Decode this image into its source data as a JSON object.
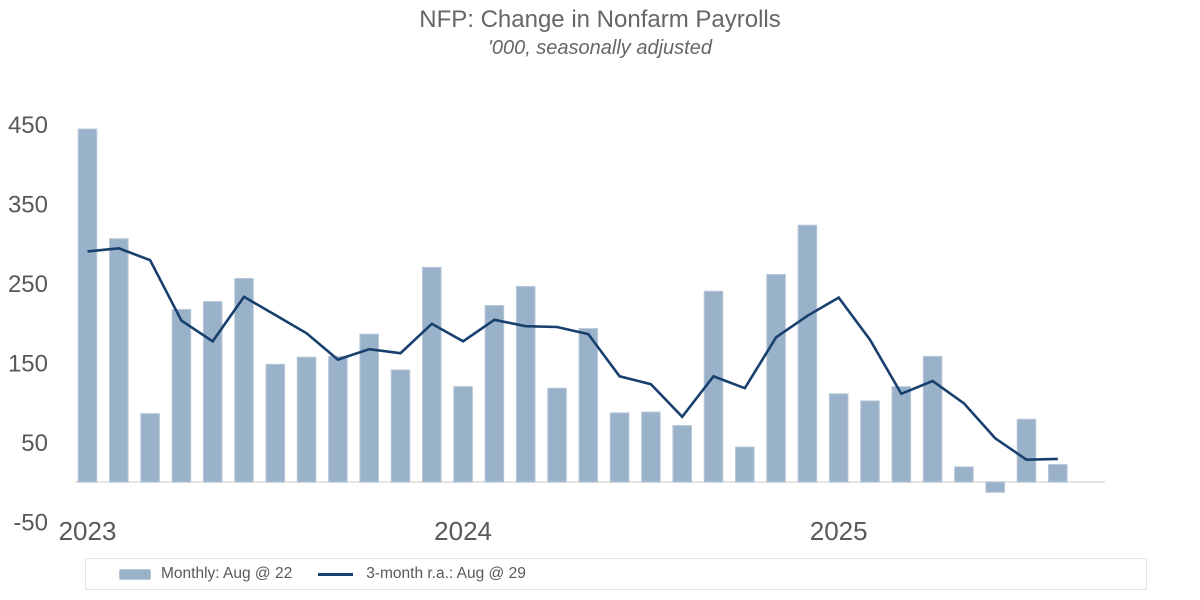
{
  "title": "NFP: Change in Nonfarm Payrolls",
  "subtitle": "'000, seasonally adjusted",
  "legend": {
    "bar_label": "Monthly: Aug @ 22",
    "line_label": "3-month r.a.: Aug @ 29"
  },
  "colors": {
    "bar_fill": "#9ab2c9",
    "bar_border": "#b9c8d8",
    "line": "#18406e",
    "tick_text": "#595959",
    "title_text": "#666666",
    "axis_line": "#e4e4e4",
    "legend_border": "#e2e2e2"
  },
  "chart_data": {
    "type": "bar",
    "title": "NFP: Change in Nonfarm Payrolls",
    "subtitle": "'000, seasonally adjusted",
    "x": [
      "Jan 2023",
      "Feb 2023",
      "Mar 2023",
      "Apr 2023",
      "May 2023",
      "Jun 2023",
      "Jul 2023",
      "Aug 2023",
      "Sep 2023",
      "Oct 2023",
      "Nov 2023",
      "Dec 2023",
      "Jan 2024",
      "Feb 2024",
      "Mar 2024",
      "Apr 2024",
      "May 2024",
      "Jun 2024",
      "Jul 2024",
      "Aug 2024",
      "Sep 2024",
      "Oct 2024",
      "Nov 2024",
      "Dec 2024",
      "Jan 2025",
      "Feb 2025",
      "Mar 2025",
      "Apr 2025",
      "May 2025",
      "Jun 2025",
      "Jul 2025",
      "Aug 2025"
    ],
    "series": [
      {
        "name": "Monthly: Aug @ 22",
        "type": "bar",
        "values": [
          444,
          306,
          86,
          217,
          227,
          256,
          148,
          157,
          158,
          186,
          141,
          270,
          120,
          222,
          246,
          118,
          193,
          87,
          88,
          71,
          240,
          44,
          261,
          323,
          111,
          102,
          120,
          158,
          19,
          -13,
          79,
          22
        ]
      },
      {
        "name": "3-month r.a.: Aug @ 29",
        "type": "line",
        "values": [
          290,
          294,
          279,
          203,
          177,
          233,
          210,
          187,
          154,
          167,
          162,
          199,
          177,
          204,
          196,
          195,
          186,
          133,
          123,
          82,
          133,
          118,
          182,
          209,
          232,
          179,
          111,
          127,
          99,
          55,
          28,
          29
        ]
      }
    ],
    "x_tick_labels": [
      {
        "label": "2023",
        "month_index": 0
      },
      {
        "label": "2024",
        "month_index": 12
      },
      {
        "label": "2025",
        "month_index": 24
      }
    ],
    "y_ticks": [
      450,
      350,
      250,
      150,
      50,
      -50
    ],
    "ylim": [
      -50,
      460
    ],
    "grid": false,
    "legend_position": "bottom",
    "ylabel": "",
    "xlabel": ""
  }
}
